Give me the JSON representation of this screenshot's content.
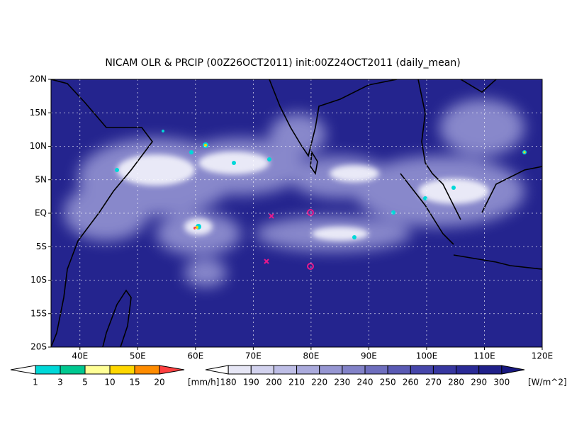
{
  "title": "NICAM OLR & PRCIP (00Z26OCT2011) init:00Z24OCT2011 (daily_mean)",
  "map": {
    "lat_labels": [
      "20N",
      "15N",
      "10N",
      "5N",
      "EQ",
      "5S",
      "10S",
      "15S",
      "20S"
    ],
    "lon_labels": [
      "40E",
      "50E",
      "60E",
      "70E",
      "80E",
      "90E",
      "100E",
      "110E",
      "120E"
    ]
  },
  "precip_legend": {
    "labels": [
      "1",
      "3",
      "5",
      "10",
      "15",
      "20"
    ],
    "unit": "[mm/h]",
    "colors": [
      "#ffffff",
      "#00d8d8",
      "#00c890",
      "#ffff96",
      "#ffd700",
      "#ff8c00",
      "#ff4040"
    ]
  },
  "olr_legend": {
    "labels": [
      "180",
      "190",
      "200",
      "210",
      "220",
      "230",
      "240",
      "250",
      "260",
      "270",
      "280",
      "290",
      "300"
    ],
    "unit": "[W/m^2]",
    "colors": [
      "#ffffff",
      "#e6e6f5",
      "#d2d2ee",
      "#bebee6",
      "#aaaadc",
      "#9696d2",
      "#8282c8",
      "#6e6ebe",
      "#5a5ab4",
      "#4646aa",
      "#3737a0",
      "#2a2a96",
      "#20208a",
      "#181880"
    ]
  }
}
